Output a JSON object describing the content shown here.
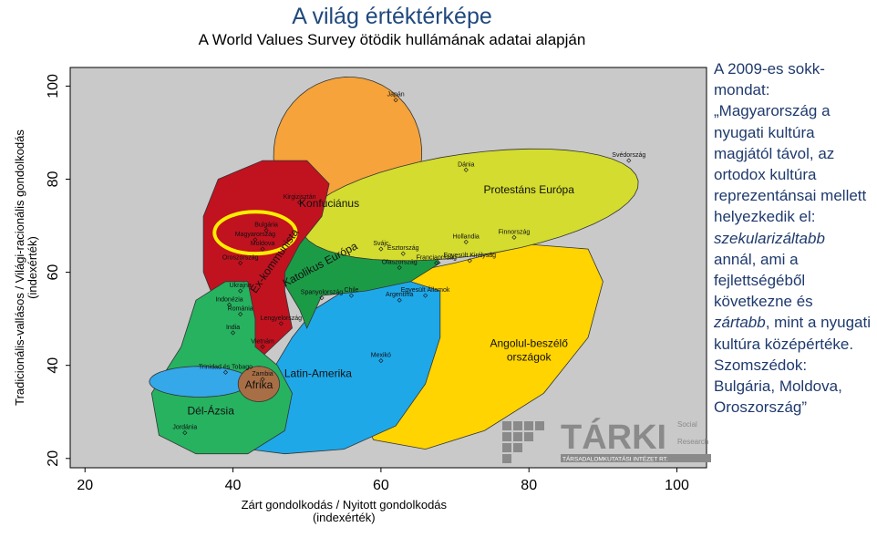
{
  "title": "A világ értéktérképe",
  "subtitle": "A World Values Survey ötödik hullámának adatai alapján",
  "side_text": {
    "p1": "A 2009-es sokk-mondat: „Magyarország a nyugati kultúra magjától távol, az ortodox kultúra reprezentánsai mellett helyezkedik el: ",
    "em1": "szekularizáltabb",
    "p2": " annál, ami a fejlettségéből következne és ",
    "em2": "zártabb",
    "p3": ", mint a nyugati kultúra középértéke. Szomszédok: Bulgária, Moldova, Oroszország”"
  },
  "logo": {
    "name": "TÁRKI",
    "tagline": "TÁRSADALOMKUTATÁSI INTÉZET RT.",
    "side": [
      "Social",
      "Research",
      "Centre"
    ]
  },
  "colors": {
    "background": "#c9c9c9",
    "konfucianus": "#f5a33a",
    "protestans": "#d3dc2f",
    "ex_kommunista": "#c1121f",
    "katolikus": "#1c9b47",
    "angol": "#ffd400",
    "latin": "#1ea8e8",
    "del_azsia": "#27b260",
    "afrika": "#a86e45",
    "trinidad": "#34a8e8",
    "highlight": "#ffee00"
  },
  "chart_data": {
    "type": "scatter",
    "xlabel": "Zárt gondolkodás / Nyitott gondolkodás\n(indexérték)",
    "ylabel": "Tradicionális-vallásos / Világi-racionális gondolkodás\n(indexérték)",
    "xlim": [
      18,
      104
    ],
    "ylim": [
      18,
      104
    ],
    "xticks": [
      20,
      40,
      60,
      80,
      100
    ],
    "yticks": [
      20,
      40,
      60,
      80,
      100
    ],
    "regions": [
      {
        "name": "Konfuciánus",
        "lx": 53,
        "ly": 74
      },
      {
        "name": "Protestáns Európa",
        "lx": 80,
        "ly": 77
      },
      {
        "name": "Ex-kommunista",
        "lx": 46,
        "ly": 62
      },
      {
        "name": "Katolikus Európa",
        "lx": 52,
        "ly": 61
      },
      {
        "name": "Angolul-beszélő\nországok",
        "lx": 80,
        "ly": 44
      },
      {
        "name": "Latin-Amerika",
        "lx": 51.5,
        "ly": 37.5
      },
      {
        "name": "Dél-Ázsia",
        "lx": 37,
        "ly": 29.5
      },
      {
        "name": "Afrika",
        "lx": 43.5,
        "ly": 35
      }
    ],
    "points": [
      {
        "label": "Japán",
        "x": 62,
        "y": 97
      },
      {
        "label": "Svédország",
        "x": 93.5,
        "y": 84
      },
      {
        "label": "Dánia",
        "x": 71.5,
        "y": 82
      },
      {
        "label": "Kirgizisztán",
        "x": 49,
        "y": 75
      },
      {
        "label": "Bulgária",
        "x": 44.5,
        "y": 69
      },
      {
        "label": "Magyarország",
        "x": 43,
        "y": 67
      },
      {
        "label": "Moldova",
        "x": 44,
        "y": 65
      },
      {
        "label": "Oroszország",
        "x": 41,
        "y": 62
      },
      {
        "label": "Finnország",
        "x": 78,
        "y": 67.5
      },
      {
        "label": "Hollandia",
        "x": 71.5,
        "y": 66.5
      },
      {
        "label": "Svájc",
        "x": 60,
        "y": 65
      },
      {
        "label": "Észtország",
        "x": 63,
        "y": 64
      },
      {
        "label": "Olaszország",
        "x": 62.5,
        "y": 61
      },
      {
        "label": "Franciaország",
        "x": 67.5,
        "y": 62
      },
      {
        "label": "Egyesült Királyság",
        "x": 72,
        "y": 62.5
      },
      {
        "label": "Ukrajna",
        "x": 41,
        "y": 56
      },
      {
        "label": "Spanyolország",
        "x": 52,
        "y": 54.5
      },
      {
        "label": "Chile",
        "x": 56,
        "y": 55
      },
      {
        "label": "Argentína",
        "x": 62.5,
        "y": 54
      },
      {
        "label": "Egyesült Államok",
        "x": 66,
        "y": 55
      },
      {
        "label": "Indonézia",
        "x": 39.5,
        "y": 53
      },
      {
        "label": "Románia",
        "x": 41,
        "y": 51
      },
      {
        "label": "Lengyelország",
        "x": 46.5,
        "y": 49
      },
      {
        "label": "India",
        "x": 40,
        "y": 47
      },
      {
        "label": "Vietnám",
        "x": 44,
        "y": 44
      },
      {
        "label": "Mexikó",
        "x": 60,
        "y": 41
      },
      {
        "label": "Trinidad és Tobago",
        "x": 39,
        "y": 38.5
      },
      {
        "label": "Zambia",
        "x": 44,
        "y": 37
      },
      {
        "label": "Jordánia",
        "x": 33.5,
        "y": 25.5
      }
    ]
  }
}
